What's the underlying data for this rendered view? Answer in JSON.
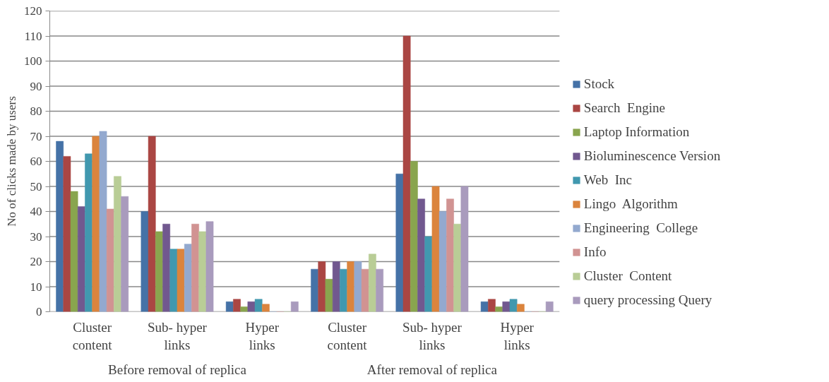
{
  "chart_data": {
    "type": "bar",
    "ylabel": "No of clicks made by users",
    "categories": [
      "Cluster\ncontent",
      "Sub- hyper\nlinks",
      "Hyper\nlinks",
      "Cluster\ncontent",
      "Sub- hyper\nlinks",
      "Hyper\nlinks"
    ],
    "annotations": [
      "Before removal of replica",
      "After removal of replica"
    ],
    "series": [
      {
        "name": "Stock",
        "color": "#4572a7",
        "values": [
          68,
          40,
          4,
          17,
          55,
          4
        ]
      },
      {
        "name": "Search  Engine",
        "color": "#aa4643",
        "values": [
          62,
          70,
          5,
          20,
          110,
          5
        ]
      },
      {
        "name": "Laptop Information",
        "color": "#89a54e",
        "values": [
          48,
          32,
          2,
          13,
          60,
          2
        ]
      },
      {
        "name": "Bioluminescence Version",
        "color": "#71588f",
        "values": [
          42,
          35,
          4,
          20,
          45,
          4
        ]
      },
      {
        "name": "Web  Inc",
        "color": "#4198af",
        "values": [
          63,
          25,
          5,
          17,
          30,
          5
        ]
      },
      {
        "name": "Lingo  Algorithm",
        "color": "#db843d",
        "values": [
          70,
          25,
          3,
          20,
          50,
          3
        ]
      },
      {
        "name": "Engineering  College",
        "color": "#93a9cf",
        "values": [
          72,
          27,
          0,
          20,
          40,
          0
        ]
      },
      {
        "name": "Info",
        "color": "#d19392",
        "values": [
          41,
          35,
          0,
          17,
          45,
          0
        ]
      },
      {
        "name": "Cluster  Content",
        "color": "#b9cd96",
        "values": [
          54,
          32,
          0,
          23,
          35,
          0
        ]
      },
      {
        "name": "query processing Query",
        "color": "#a99bbd",
        "values": [
          46,
          36,
          4,
          17,
          50,
          4
        ]
      }
    ],
    "ylim": [
      0,
      120
    ],
    "yticks": [
      0,
      10,
      20,
      30,
      40,
      50,
      60,
      70,
      80,
      90,
      100,
      110,
      120
    ],
    "grid": "y",
    "legend": "right"
  }
}
